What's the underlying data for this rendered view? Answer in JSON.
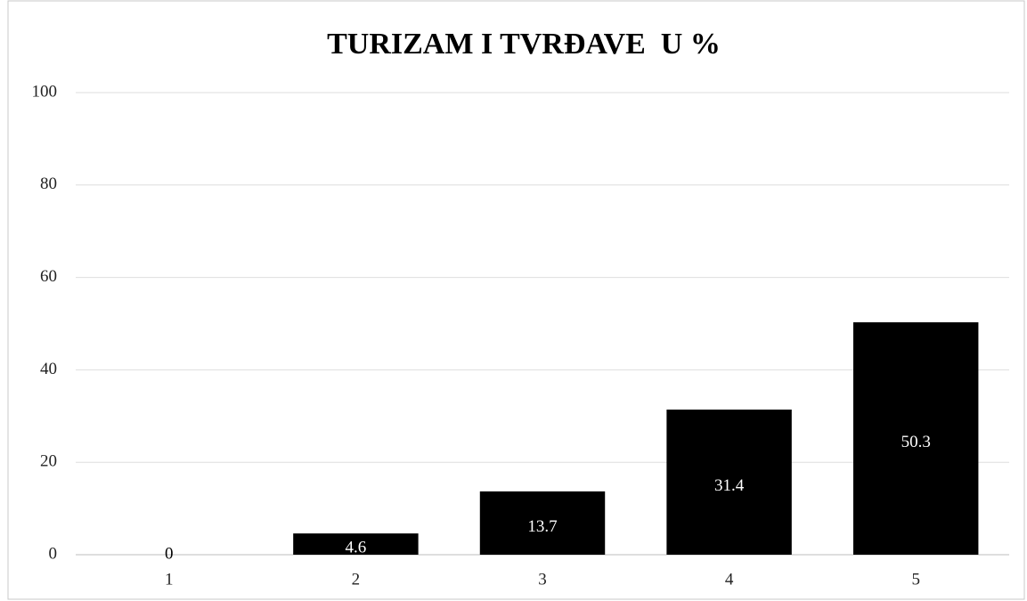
{
  "chart_data": {
    "type": "bar",
    "title": "TURIZAM I TVRĐAVE  U %",
    "categories": [
      "1",
      "2",
      "3",
      "4",
      "5"
    ],
    "values": [
      0,
      4.6,
      13.7,
      31.4,
      50.3
    ],
    "color": "#000000",
    "ylim": [
      0,
      100
    ],
    "yticks": [
      0,
      20,
      40,
      60,
      80,
      100
    ],
    "grid": true
  }
}
